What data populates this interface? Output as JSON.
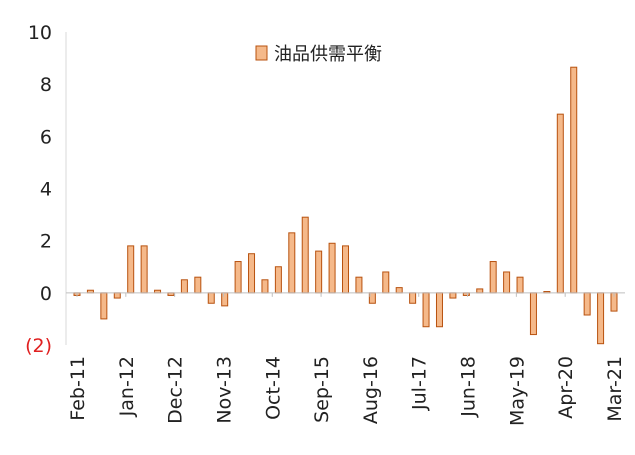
{
  "chart_data": {
    "type": "bar",
    "legend": {
      "label": "油品供需平衡",
      "position": "top-center"
    },
    "bar_color": "#F5B98A",
    "bar_edge_color": "#B8520F",
    "negative_tick_color": "#E02020",
    "ylim": [
      -2,
      10
    ],
    "yticks": [
      {
        "value": 10,
        "label": "10"
      },
      {
        "value": 8,
        "label": "8"
      },
      {
        "value": 6,
        "label": "6"
      },
      {
        "value": 4,
        "label": "4"
      },
      {
        "value": 2,
        "label": "2"
      },
      {
        "value": 0,
        "label": "0"
      },
      {
        "value": -2,
        "label": "(2)"
      }
    ],
    "x_tick_labels": [
      "Feb-11",
      "Jan-12",
      "Dec-12",
      "Nov-13",
      "Oct-14",
      "Sep-15",
      "Aug-16",
      "Jul-17",
      "Jun-18",
      "May-19",
      "Apr-20",
      "Mar-21"
    ],
    "x_tick_label_quarter_index": [
      0,
      4,
      8,
      12,
      16,
      20,
      24,
      28,
      32,
      36,
      40,
      44
    ],
    "quarters_total": 45,
    "values": [
      -0.1,
      0.1,
      -1.0,
      -0.2,
      1.8,
      1.8,
      0.1,
      -0.1,
      0.5,
      0.6,
      -0.4,
      -0.5,
      1.2,
      1.5,
      0.5,
      1.0,
      2.3,
      2.9,
      1.6,
      1.9,
      1.8,
      0.6,
      -0.4,
      0.8,
      0.2,
      -0.4,
      -1.3,
      -1.3,
      -0.2,
      -0.1,
      0.15,
      1.2,
      0.8,
      0.6,
      -1.6,
      0.05,
      6.85,
      8.65,
      -0.85,
      -1.95,
      -0.7
    ]
  }
}
